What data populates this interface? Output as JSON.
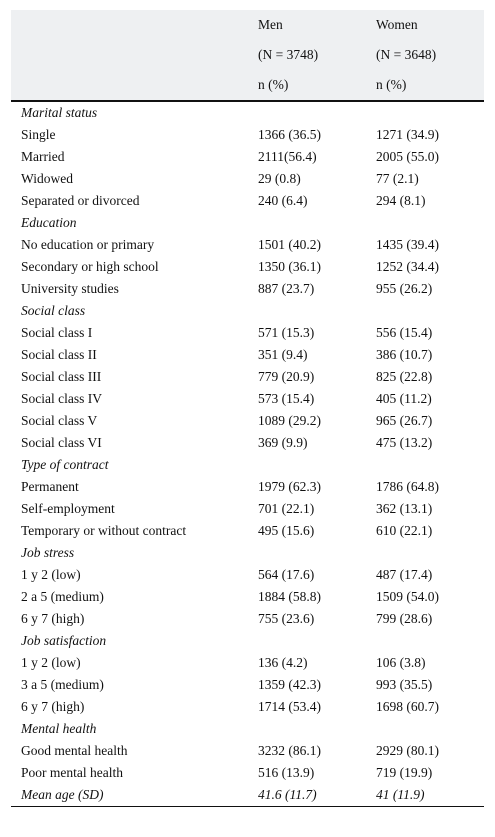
{
  "header": {
    "men_label": "Men",
    "women_label": "Women",
    "men_n": "(N = 3748)",
    "women_n": "(N = 3648)",
    "men_unit": "n (%)",
    "women_unit": "n (%)"
  },
  "rows": [
    {
      "type": "section",
      "label": "Marital status"
    },
    {
      "type": "row",
      "label": "Single",
      "men": "1366 (36.5)",
      "women": "1271 (34.9)"
    },
    {
      "type": "row",
      "label": "Married",
      "men": "2111(56.4)",
      "women": "2005 (55.0)"
    },
    {
      "type": "row",
      "label": "Widowed",
      "men": "29 (0.8)",
      "women": "77 (2.1)"
    },
    {
      "type": "row",
      "label": "Separated or divorced",
      "men": "240 (6.4)",
      "women": "294 (8.1)"
    },
    {
      "type": "section",
      "label": "Education"
    },
    {
      "type": "row",
      "label": "No education or primary",
      "men": "1501 (40.2)",
      "women": "1435 (39.4)"
    },
    {
      "type": "row",
      "label": "Secondary or high school",
      "men": "1350 (36.1)",
      "women": "1252 (34.4)"
    },
    {
      "type": "row",
      "label": "University studies",
      "men": "887 (23.7)",
      "women": "955 (26.2)"
    },
    {
      "type": "section",
      "label": "Social class"
    },
    {
      "type": "row",
      "label": "Social class I",
      "men": "571 (15.3)",
      "women": "556 (15.4)"
    },
    {
      "type": "row",
      "label": "Social class II",
      "men": "351 (9.4)",
      "women": "386 (10.7)"
    },
    {
      "type": "row",
      "label": "Social class III",
      "men": "779 (20.9)",
      "women": "825 (22.8)"
    },
    {
      "type": "row",
      "label": "Social class IV",
      "men": "573 (15.4)",
      "women": "405 (11.2)"
    },
    {
      "type": "row",
      "label": "Social class V",
      "men": "1089 (29.2)",
      "women": "965 (26.7)"
    },
    {
      "type": "row",
      "label": "Social class VI",
      "men": "369 (9.9)",
      "women": "475 (13.2)"
    },
    {
      "type": "section",
      "label": "Type of contract"
    },
    {
      "type": "row",
      "label": "Permanent",
      "men": "1979 (62.3)",
      "women": "1786 (64.8)"
    },
    {
      "type": "row",
      "label": "Self-employment",
      "men": "701 (22.1)",
      "women": "362 (13.1)"
    },
    {
      "type": "row",
      "label": "Temporary or without contract",
      "men": "495 (15.6)",
      "women": "610 (22.1)"
    },
    {
      "type": "section",
      "label": "Job stress"
    },
    {
      "type": "row",
      "label": "1 y 2 (low)",
      "men": "564 (17.6)",
      "women": "487 (17.4)"
    },
    {
      "type": "row",
      "label": "2 a 5 (medium)",
      "men": "1884 (58.8)",
      "women": "1509 (54.0)"
    },
    {
      "type": "row",
      "label": "6 y 7 (high)",
      "men": "755 (23.6)",
      "women": "799 (28.6)"
    },
    {
      "type": "section",
      "label": "Job satisfaction"
    },
    {
      "type": "row",
      "label": "1 y 2 (low)",
      "men": "136 (4.2)",
      "women": "106 (3.8)"
    },
    {
      "type": "row",
      "label": "3 a 5 (medium)",
      "men": "1359 (42.3)",
      "women": "993 (35.5)"
    },
    {
      "type": "row",
      "label": "6 y 7 (high)",
      "men": "1714 (53.4)",
      "women": "1698 (60.7)"
    },
    {
      "type": "section",
      "label": "Mental health"
    },
    {
      "type": "row",
      "label": "Good mental health",
      "men": "3232 (86.1)",
      "women": "2929 (80.1)"
    },
    {
      "type": "row",
      "label": "Poor mental health",
      "men": "516 (13.9)",
      "women": "719 (19.9)"
    },
    {
      "type": "italic-row",
      "label": "Mean age (SD)",
      "men": "41.6 (11.7)",
      "women": "41 (11.9)"
    }
  ]
}
